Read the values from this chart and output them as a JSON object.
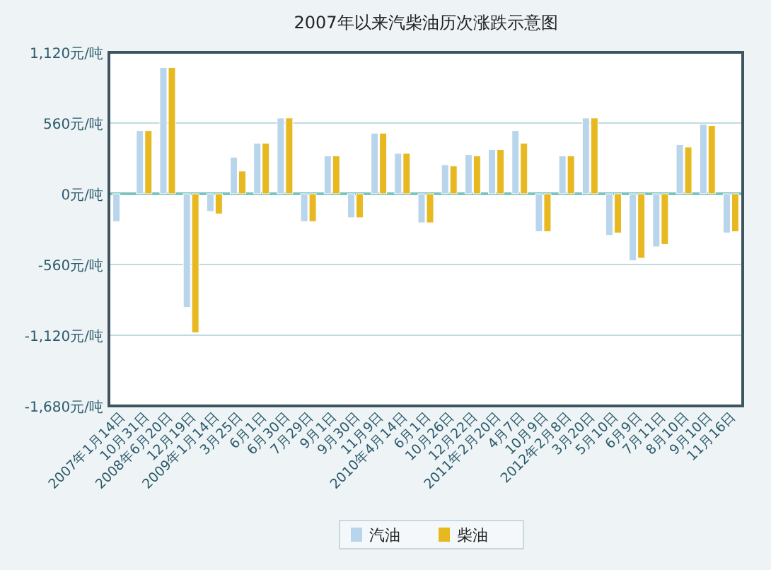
{
  "chart_data": {
    "type": "bar",
    "title": "2007年以来汽柴油历次涨跌示意图",
    "categories": [
      "2007年1月14日",
      "10月31日",
      "2008年6月20日",
      "12月19日",
      "2009年1月14日",
      "3月25日",
      "6月1日",
      "6月30日",
      "7月29日",
      "9月1日",
      "9月30日",
      "11月9日",
      "2010年4月14日",
      "6月1日",
      "10月26日",
      "12月22日",
      "2011年2月20日",
      "4月7日",
      "10月9日",
      "2012年2月8日",
      "3月20日",
      "5月10日",
      "6月9日",
      "7月11日",
      "8月10日",
      "9月10日",
      "11月16日"
    ],
    "series": [
      {
        "name": "汽油",
        "color": "#b9d5ec",
        "values": [
          -220,
          500,
          1000,
          -900,
          -140,
          290,
          400,
          600,
          -220,
          300,
          -190,
          480,
          320,
          -230,
          230,
          310,
          350,
          500,
          -300,
          300,
          600,
          -330,
          -530,
          -420,
          390,
          550,
          -310
        ]
      },
      {
        "name": "柴油",
        "color": "#e8b820",
        "values": [
          0,
          500,
          1000,
          -1100,
          -160,
          180,
          400,
          600,
          -220,
          300,
          -190,
          480,
          320,
          -230,
          220,
          300,
          350,
          400,
          -300,
          300,
          600,
          -310,
          -510,
          -400,
          370,
          540,
          -300
        ]
      }
    ],
    "ylim": [
      -1680,
      1120
    ],
    "yticks": [
      {
        "value": 1120,
        "label": "1,120元/吨"
      },
      {
        "value": 560,
        "label": "560元/吨"
      },
      {
        "value": 0,
        "label": "0元/吨"
      },
      {
        "value": -560,
        "label": "-560元/吨"
      },
      {
        "value": -1120,
        "label": "-1,120元/吨"
      },
      {
        "value": -1680,
        "label": "-1,680元/吨"
      }
    ],
    "ref_lines": [
      {
        "axis": "y",
        "value": 0,
        "color": "#7cc4c0"
      }
    ],
    "grid": "y",
    "legend": "bottom"
  }
}
